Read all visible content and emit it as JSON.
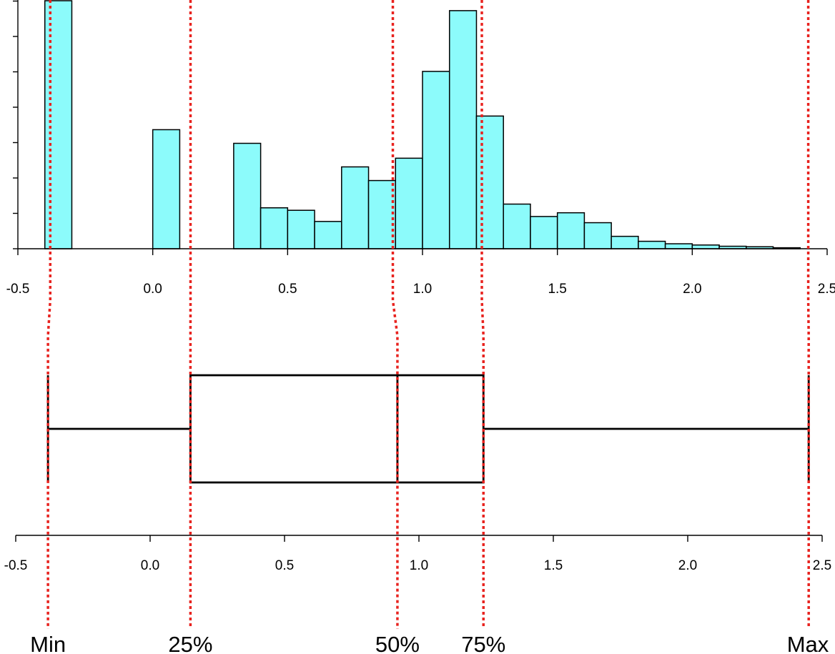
{
  "chart_data": [
    {
      "type": "bar",
      "subtype": "histogram",
      "title": "",
      "xlabel": "",
      "ylabel": "",
      "xlim": [
        -0.5,
        2.5
      ],
      "bin_width": 0.1,
      "xticks": [
        "-0.5",
        "0.0",
        "0.5",
        "1.0",
        "1.5",
        "2.0",
        "2.5"
      ],
      "bins": [
        {
          "start": -0.4,
          "end": -0.3,
          "value": 100
        },
        {
          "start": 0.0,
          "end": 0.1,
          "value": 48
        },
        {
          "start": 0.3,
          "end": 0.4,
          "value": 42.5
        },
        {
          "start": 0.4,
          "end": 0.5,
          "value": 16.5
        },
        {
          "start": 0.5,
          "end": 0.6,
          "value": 15.5
        },
        {
          "start": 0.6,
          "end": 0.7,
          "value": 11
        },
        {
          "start": 0.7,
          "end": 0.8,
          "value": 33
        },
        {
          "start": 0.8,
          "end": 0.9,
          "value": 27.5
        },
        {
          "start": 0.9,
          "end": 1.0,
          "value": 36.5
        },
        {
          "start": 1.0,
          "end": 1.1,
          "value": 71.5
        },
        {
          "start": 1.1,
          "end": 1.2,
          "value": 96
        },
        {
          "start": 1.2,
          "end": 1.3,
          "value": 53.5
        },
        {
          "start": 1.3,
          "end": 1.4,
          "value": 18
        },
        {
          "start": 1.4,
          "end": 1.5,
          "value": 13
        },
        {
          "start": 1.5,
          "end": 1.6,
          "value": 14.5
        },
        {
          "start": 1.6,
          "end": 1.7,
          "value": 10.5
        },
        {
          "start": 1.7,
          "end": 1.8,
          "value": 5
        },
        {
          "start": 1.8,
          "end": 1.9,
          "value": 3
        },
        {
          "start": 1.9,
          "end": 2.0,
          "value": 2
        },
        {
          "start": 2.0,
          "end": 2.1,
          "value": 1.5
        },
        {
          "start": 2.1,
          "end": 2.2,
          "value": 1
        },
        {
          "start": 2.2,
          "end": 2.3,
          "value": 0.8
        },
        {
          "start": 2.3,
          "end": 2.4,
          "value": 0.4
        }
      ],
      "ylim": [
        0,
        100
      ],
      "y_gridlines": false,
      "bar_color": "#8cfbfb"
    },
    {
      "type": "boxplot",
      "xlim": [
        -0.5,
        2.5
      ],
      "xticks": [
        "-0.5",
        "0.0",
        "0.5",
        "1.0",
        "1.5",
        "2.0",
        "2.5"
      ],
      "min": -0.38,
      "q1": 0.15,
      "median": 0.92,
      "q3": 1.24,
      "max": 2.45
    }
  ],
  "markers": [
    {
      "label": "Min",
      "hist_x": -0.38,
      "box_x": -0.38
    },
    {
      "label": "25%",
      "hist_x": 0.14,
      "box_x": 0.15
    },
    {
      "label": "50%",
      "hist_x": 0.89,
      "box_x": 0.92
    },
    {
      "label": "75%",
      "hist_x": 1.22,
      "box_x": 1.24
    },
    {
      "label": "Max",
      "hist_x": 2.43,
      "box_x": 2.45
    }
  ],
  "colors": {
    "bar_fill": "#8cfbfb",
    "bar_stroke": "#000000",
    "marker_line": "#e8231f",
    "axis": "#000000"
  }
}
